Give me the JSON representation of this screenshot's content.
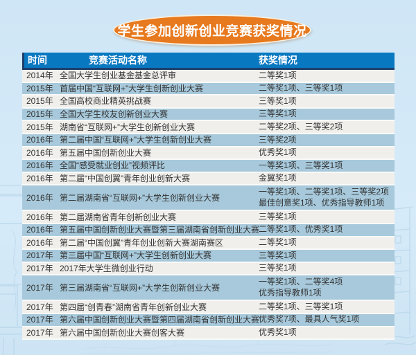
{
  "title": "学生参加创新创业竞赛获奖情况",
  "chart_data": {
    "type": "table",
    "title": "学生参加创新创业竞赛获奖情况",
    "columns": [
      "时间",
      "竞赛活动名称",
      "获奖情况"
    ],
    "rows": [
      {
        "year": "2014年",
        "name": "全国大学生创业基金基金总评审",
        "awards": [
          "二等奖1项"
        ]
      },
      {
        "year": "2015年",
        "name": "首届中国“互联网+”大学生创新创业大赛",
        "awards": [
          "二等奖1项、三等奖1项"
        ]
      },
      {
        "year": "2015年",
        "name": "全国高校商业精英挑战赛",
        "awards": [
          "三等奖1项"
        ]
      },
      {
        "year": "2015年",
        "name": "全国大学生校友创新创业大赛",
        "awards": [
          "三等奖1项"
        ]
      },
      {
        "year": "2015年",
        "name": "湖南省“互联网+”大学生创新创业大赛",
        "awards": [
          "二等奖2项、三等奖2项"
        ]
      },
      {
        "year": "2016年",
        "name": "第二届中国“互联网+”大学生创新创业大赛",
        "awards": [
          "三等奖2项"
        ]
      },
      {
        "year": "2016年",
        "name": "第五届中国创新创业大赛",
        "awards": [
          "优秀奖1项"
        ]
      },
      {
        "year": "2016年",
        "name": "全国“感受就业创业”视频评比",
        "awards": [
          "一等奖1项、三等奖1项"
        ]
      },
      {
        "year": "2016年",
        "name": "第二届“中国创翼”青年创业创新大赛",
        "awards": [
          "金翼奖1项"
        ]
      },
      {
        "year": "2016年",
        "name": "第二届湖南省“互联网+”大学生创新创业大赛",
        "awards": [
          "一等奖1项、二等奖1项、三等奖2项",
          "最佳创意奖1项、优秀指导教师1项"
        ]
      },
      {
        "year": "2016年",
        "name": "第二届湖南省青年创新创业大赛",
        "awards": [
          "三等奖1项"
        ]
      },
      {
        "year": "2016年",
        "name": "第五届中国创新创业大赛暨第三届湖南省创新创业大赛",
        "awards": [
          "二等奖1项、优秀奖1项"
        ]
      },
      {
        "year": "2016年",
        "name": "第二届“中国创翼”青年创业创新大赛湖南赛区",
        "awards": [
          "二等奖1项"
        ]
      },
      {
        "year": "2017年",
        "name": "第三届中国“互联网+”大学生创新创业大赛",
        "awards": [
          "三等奖1项"
        ]
      },
      {
        "year": "2017年",
        "name": "2017年大学生微创业行动",
        "awards": [
          "三等奖1项"
        ]
      },
      {
        "year": "2017年",
        "name": "第三届湖南省“互联网+”大学生创新创业大赛",
        "awards": [
          "一等奖1项、二等奖4项",
          "优秀指导教师1项"
        ]
      },
      {
        "year": "2017年",
        "name": "第四届“创青春”湖南省青年创新创业大赛",
        "awards": [
          "二等奖1项、三等奖1项"
        ]
      },
      {
        "year": "2017年",
        "name": "第六届中国创新创业大赛暨第四届湖南省创新创业大赛",
        "awards": [
          "优秀奖7项、最具人气奖1项"
        ]
      },
      {
        "year": "2017年",
        "name": "第六届中国创新创业大赛创客大赛",
        "awards": [
          "优秀奖1项"
        ]
      }
    ],
    "layout_hints": {
      "row_striping": [
        "light",
        "steel-blue"
      ],
      "header_position": "top"
    }
  },
  "colors": {
    "page_bg": "#d4e9f7",
    "title_bg": "#e7791e",
    "title_text": "#ffffff",
    "header_bg": "#0878c1",
    "header_border": "#1d3e6b",
    "header_text": "#ffffff",
    "row_light": "#f0efec",
    "row_blue": "#a7c9db",
    "row_gap": "#fafaf8",
    "body_text": "#333333"
  },
  "decor": {
    "watermark_left": "building-sketch",
    "watermark_right": "tower-sketch",
    "watermark_bottom": "rooftop-sketch"
  }
}
